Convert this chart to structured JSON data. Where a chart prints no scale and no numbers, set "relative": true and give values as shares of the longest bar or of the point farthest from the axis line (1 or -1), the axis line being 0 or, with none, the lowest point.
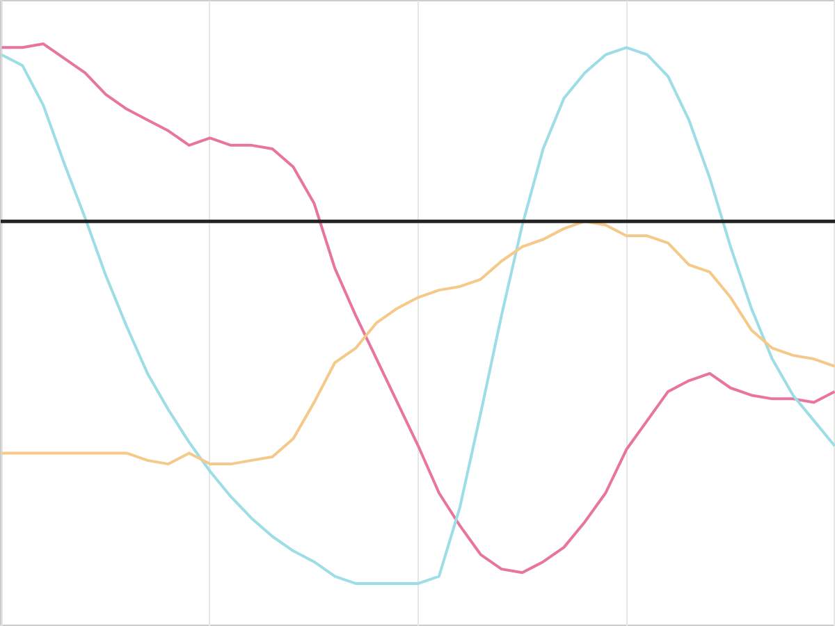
{
  "chart_data": {
    "type": "line",
    "relative": true,
    "grid": "x",
    "marker": "none",
    "line_style": "solid",
    "categories": [
      null,
      null,
      null,
      null,
      null,
      null,
      null,
      null,
      null,
      null,
      null,
      null,
      null,
      null,
      null,
      null,
      null,
      null,
      null,
      null,
      null,
      null,
      null,
      null,
      null,
      null,
      null,
      null,
      null,
      null,
      null,
      null,
      null,
      null,
      null,
      null,
      null,
      null,
      null,
      null,
      null
    ],
    "ref_lines": [
      {
        "axis": "y",
        "value": 0,
        "color": "#222222"
      }
    ],
    "series": [
      {
        "color": "#e7759e",
        "values": [
          0.48,
          0.48,
          0.49,
          0.45,
          0.41,
          0.35,
          0.31,
          0.28,
          0.25,
          0.21,
          0.23,
          0.21,
          0.21,
          0.2,
          0.15,
          0.05,
          -0.13,
          -0.26,
          -0.38,
          -0.5,
          -0.62,
          -0.75,
          -0.84,
          -0.92,
          -0.96,
          -0.97,
          -0.94,
          -0.9,
          -0.83,
          -0.75,
          -0.63,
          -0.55,
          -0.47,
          -0.44,
          -0.42,
          -0.46,
          -0.48,
          -0.49,
          -0.49,
          -0.5,
          -0.47
        ]
      },
      {
        "color": "#9ddde6",
        "values": [
          0.46,
          0.43,
          0.32,
          0.16,
          0.01,
          -0.15,
          -0.29,
          -0.42,
          -0.52,
          -0.61,
          -0.69,
          -0.76,
          -0.82,
          -0.87,
          -0.91,
          -0.94,
          -0.98,
          -1,
          -1,
          -1,
          -1,
          -0.98,
          -0.79,
          -0.53,
          -0.26,
          -0.01,
          0.2,
          0.34,
          0.41,
          0.46,
          0.48,
          0.46,
          0.4,
          0.28,
          0.12,
          -0.07,
          -0.24,
          -0.38,
          -0.48,
          -0.55,
          -0.62
        ]
      },
      {
        "color": "#f5c98a",
        "values": [
          -0.64,
          -0.64,
          -0.64,
          -0.64,
          -0.64,
          -0.64,
          -0.64,
          -0.66,
          -0.67,
          -0.64,
          -0.67,
          -0.67,
          -0.66,
          -0.65,
          -0.6,
          -0.5,
          -0.39,
          -0.35,
          -0.28,
          -0.24,
          -0.21,
          -0.19,
          -0.18,
          -0.16,
          -0.11,
          -0.07,
          -0.05,
          -0.02,
          0,
          -0.01,
          -0.04,
          -0.04,
          -0.06,
          -0.12,
          -0.14,
          -0.21,
          -0.3,
          -0.35,
          -0.37,
          -0.38,
          -0.4
        ]
      }
    ]
  }
}
